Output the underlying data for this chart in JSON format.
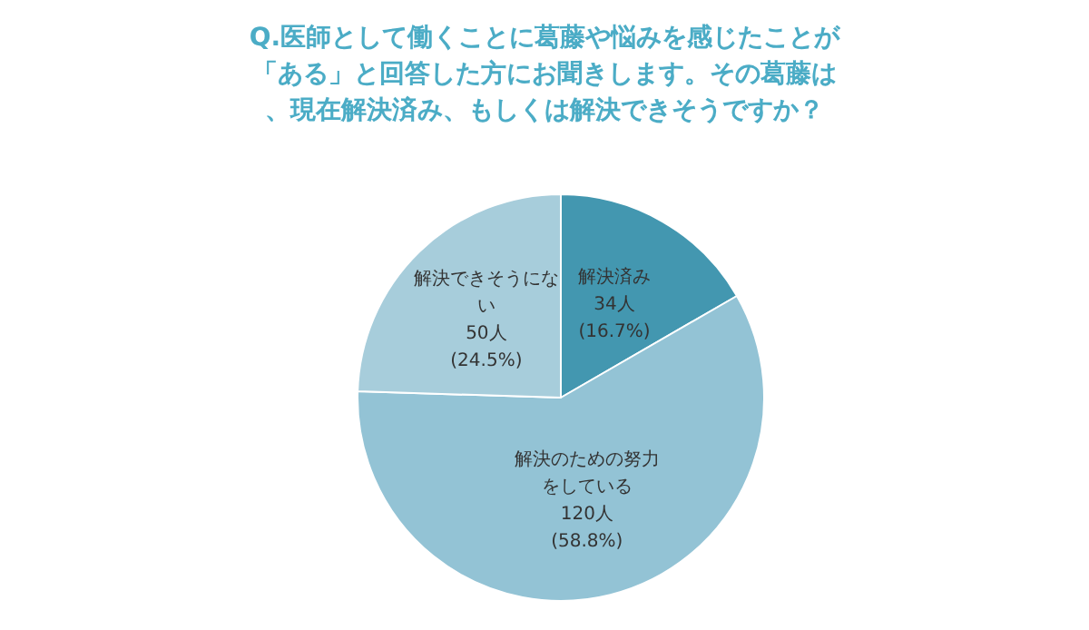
{
  "chart_data": {
    "type": "pie",
    "title": "Q.医師として働くことに葛藤や悩みを感じたことが「ある」と回答した方にお聞きします。その葛藤は、現在解決済み、もしくは解決できそうですか？",
    "categories": [
      "解決済み",
      "解決のための努力をしている",
      "解決できそうにない"
    ],
    "values": [
      34,
      120,
      50
    ],
    "value_labels": [
      "34人\n(16.7%)",
      "120人\n(58.8%)",
      "50人\n(24.5%)"
    ],
    "colors": [
      "#4397b0",
      "#93c3d5",
      "#a7cddb"
    ],
    "legend": false
  }
}
